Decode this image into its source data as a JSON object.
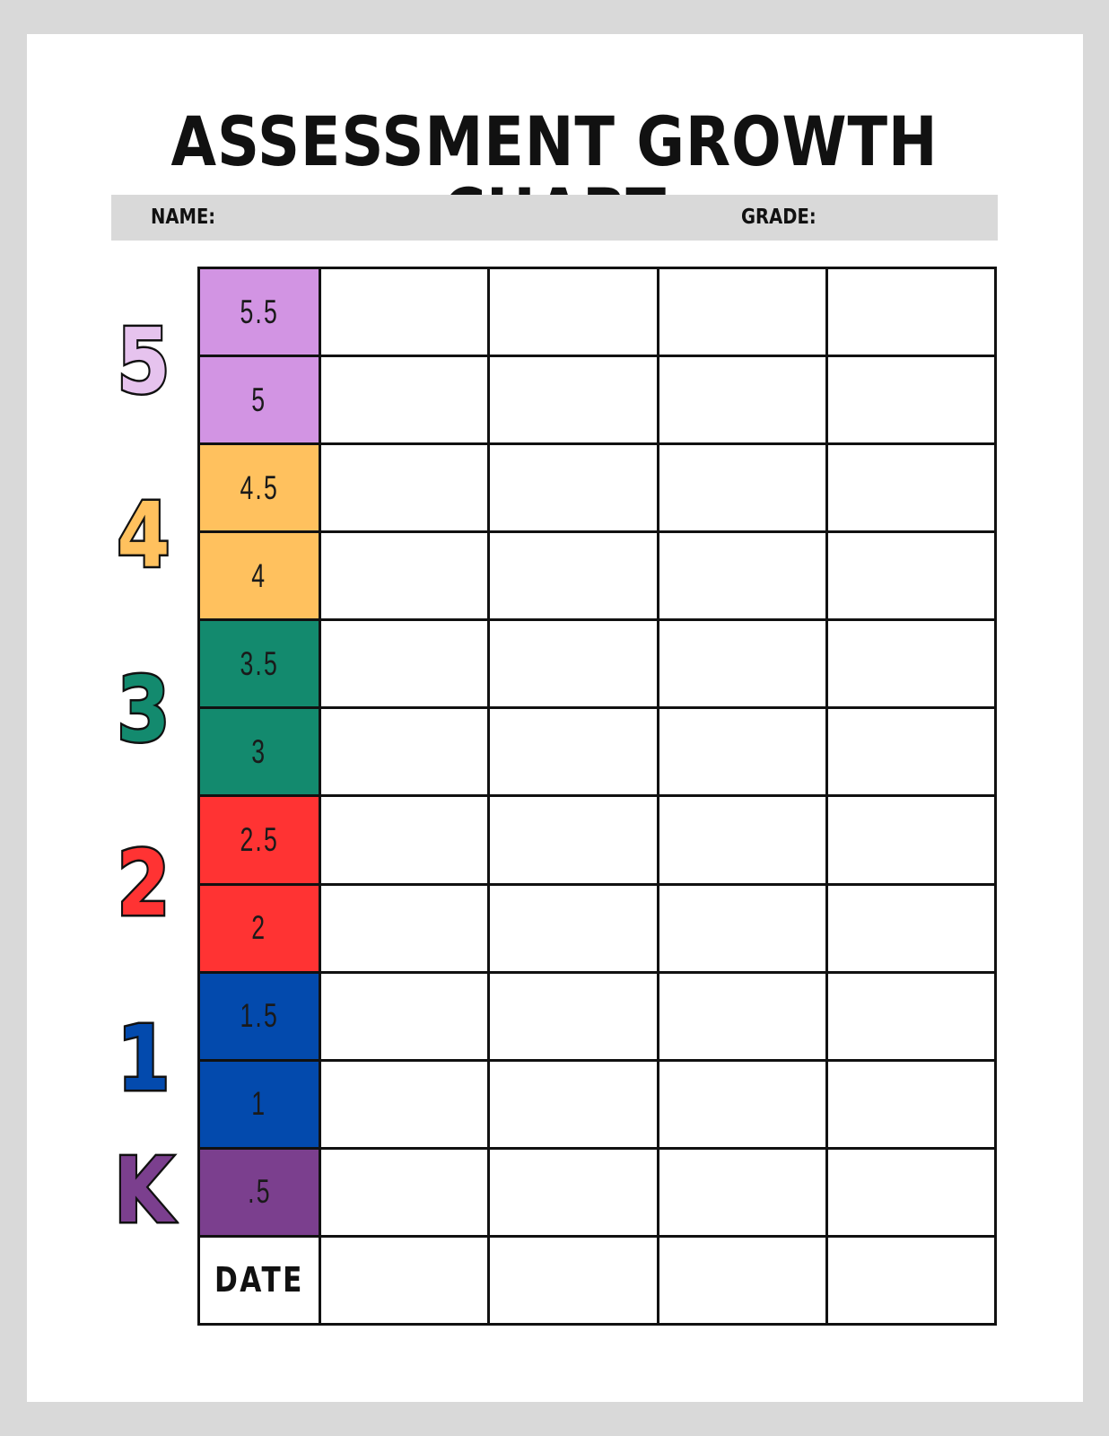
{
  "title": "ASSESSMENT GROWTH CHART",
  "header": {
    "name_label": "NAME:",
    "grade_label": "GRADE:"
  },
  "grade_markers": [
    {
      "label": "5",
      "color": "#E6C3EE"
    },
    {
      "label": "4",
      "color": "#FFC15E"
    },
    {
      "label": "3",
      "color": "#138A6E"
    },
    {
      "label": "2",
      "color": "#FF3333"
    },
    {
      "label": "1",
      "color": "#034AAD"
    },
    {
      "label": "K",
      "color": "#7B3F8E"
    }
  ],
  "levels": [
    {
      "label": "5.5",
      "color": "#D294E3"
    },
    {
      "label": "5",
      "color": "#D294E3"
    },
    {
      "label": "4.5",
      "color": "#FFC15E"
    },
    {
      "label": "4",
      "color": "#FFC15E"
    },
    {
      "label": "3.5",
      "color": "#138A6E"
    },
    {
      "label": "3",
      "color": "#138A6E"
    },
    {
      "label": "2.5",
      "color": "#FF3333"
    },
    {
      "label": "2",
      "color": "#FF3333"
    },
    {
      "label": "1.5",
      "color": "#034AAD"
    },
    {
      "label": "1",
      "color": "#034AAD"
    },
    {
      "label": ".5",
      "color": "#7B3F8E"
    }
  ],
  "date_label": "DATE",
  "entry_columns": 4
}
